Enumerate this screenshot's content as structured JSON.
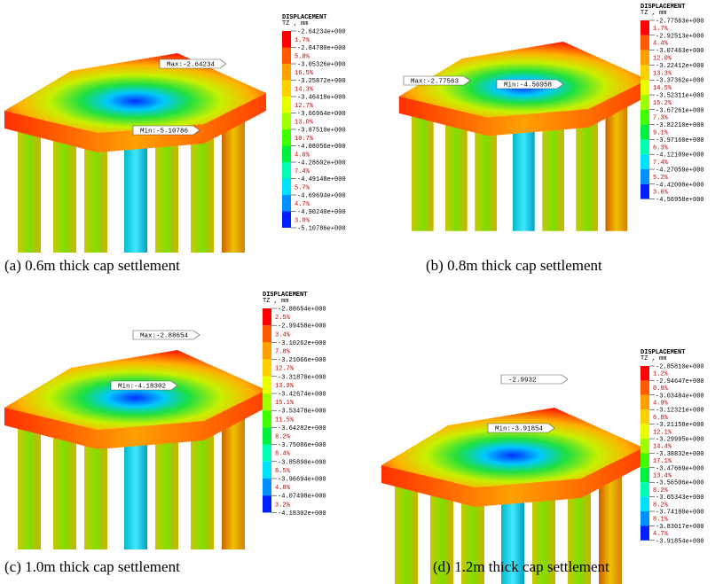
{
  "panels": [
    {
      "caption": "(a) 0.6m thick cap settlement",
      "legend": {
        "title": "DISPLACEMENT",
        "subtitle": "TZ , mm",
        "levels": [
          "-2.64234e+000",
          "-2.84780e+000",
          "-3.05326e+000",
          "-3.25872e+000",
          "-3.46418e+000",
          "-3.66964e+000",
          "-3.87510e+000",
          "-4.08056e+000",
          "-4.28602e+000",
          "-4.49148e+000",
          "-4.69694e+000",
          "-4.90240e+000",
          "-5.10786e+000"
        ],
        "percents": [
          "1.7%",
          "5.8%",
          "16.5%",
          "14.3%",
          "12.7%",
          "13.0%",
          "10.7%",
          "4.6%",
          "7.4%",
          "5.7%",
          "4.7%",
          "3.0%"
        ]
      },
      "max_label": "Max:-2.64234",
      "min_label": "Min:-5.10786"
    },
    {
      "caption": "(b) 0.8m thick cap settlement",
      "legend": {
        "title": "DISPLACEMENT",
        "subtitle": "TZ , mm",
        "levels": [
          "-2.77563e+000",
          "-2.92513e+000",
          "-3.07463e+000",
          "-3.22412e+000",
          "-3.37362e+000",
          "-3.52311e+000",
          "-3.67261e+000",
          "-3.82210e+000",
          "-3.97160e+000",
          "-4.12109e+000",
          "-4.27059e+000",
          "-4.42008e+000",
          "-4.56958e+000"
        ],
        "percents": [
          "1.7%",
          "4.4%",
          "12.0%",
          "13.3%",
          "14.5%",
          "15.2%",
          "7.3%",
          "9.1%",
          "6.3%",
          "7.4%",
          "5.2%",
          "3.6%"
        ]
      },
      "max_label": "Max:-2.77563",
      "min_label": "Min:-4.56958"
    },
    {
      "caption": "(c) 1.0m thick cap settlement",
      "legend": {
        "title": "DISPLACEMENT",
        "subtitle": "TZ , mm",
        "levels": [
          "-2.88654e+000",
          "-2.99458e+000",
          "-3.10262e+000",
          "-3.21066e+000",
          "-3.31870e+000",
          "-3.42674e+000",
          "-3.53478e+000",
          "-3.64282e+000",
          "-3.75086e+000",
          "-3.85890e+000",
          "-3.96694e+000",
          "-4.07498e+000",
          "-4.18302e+000"
        ],
        "percents": [
          "2.5%",
          "3.4%",
          "7.8%",
          "12.7%",
          "13.9%",
          "15.1%",
          "11.5%",
          "8.2%",
          "8.4%",
          "8.5%",
          "4.8%",
          "3.2%"
        ]
      },
      "max_label": "Max:-2.88654",
      "min_label": "Min:-4.18302"
    },
    {
      "caption": "(d) 1.2m thick cap settlement",
      "legend": {
        "title": "DISPLACEMENT",
        "subtitle": "TZ , mm",
        "levels": [
          "-2.85810e+000",
          "-2.94647e+000",
          "-3.03484e+000",
          "-3.12321e+000",
          "-3.21158e+000",
          "-3.29995e+000",
          "-3.38832e+000",
          "-3.47669e+000",
          "-3.56506e+000",
          "-3.65343e+000",
          "-3.74180e+000",
          "-3.83017e+000",
          "-3.91854e+000"
        ],
        "percents": [
          "1.2%",
          "0.9%",
          "4.9%",
          "6.8%",
          "12.1%",
          "14.4%",
          "17.1%",
          "13.4%",
          "8.2%",
          "8.2%",
          "8.1%",
          "4.7%"
        ]
      },
      "max_label": "-2.9932",
      "min_label": "Min:-3.91854"
    }
  ]
}
